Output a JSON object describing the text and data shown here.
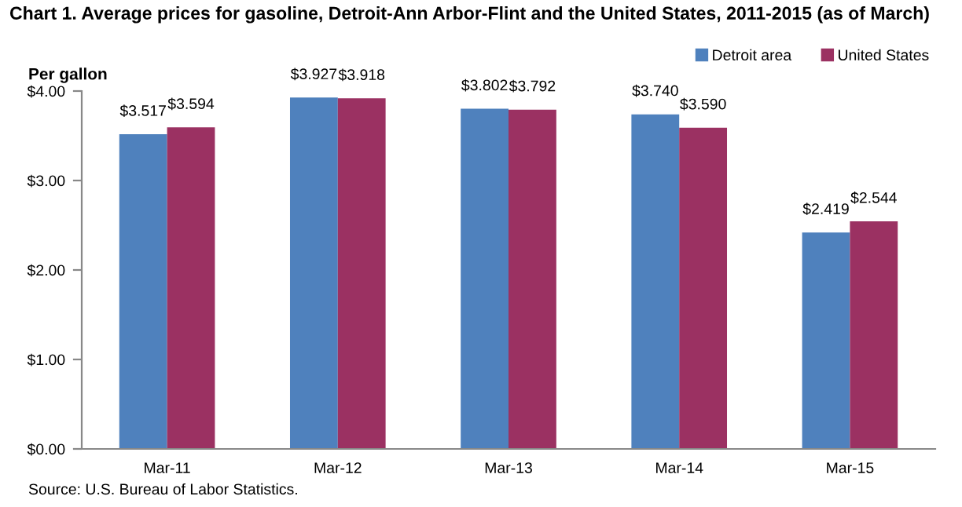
{
  "chart_data": {
    "type": "bar",
    "title": "Chart 1. Average prices for gasoline, Detroit-Ann Arbor-Flint and the United States, 2011-2015 (as of March)",
    "ylabel": "Per gallon",
    "categories": [
      "Mar-11",
      "Mar-12",
      "Mar-13",
      "Mar-14",
      "Mar-15"
    ],
    "series": [
      {
        "name": "Detroit area",
        "color": "#4f81bd",
        "values": [
          3.517,
          3.927,
          3.802,
          3.74,
          2.419
        ],
        "value_labels": [
          "$3.517",
          "$3.927",
          "$3.802",
          "$3.740",
          "$2.419"
        ]
      },
      {
        "name": "United States",
        "color": "#9b3162",
        "values": [
          3.594,
          3.918,
          3.792,
          3.59,
          2.544
        ],
        "value_labels": [
          "$3.594",
          "$3.918",
          "$3.792",
          "$3.590",
          "$2.544"
        ]
      }
    ],
    "ylim": [
      0,
      4
    ],
    "yticks": [
      {
        "value": 0,
        "label": "$0.00"
      },
      {
        "value": 1,
        "label": "$1.00"
      },
      {
        "value": 2,
        "label": "$2.00"
      },
      {
        "value": 3,
        "label": "$3.00"
      },
      {
        "value": 4,
        "label": "$4.00"
      }
    ],
    "grid": false,
    "legend": "top right",
    "annotations": [
      "Source: U.S. Bureau of Labor Statistics."
    ]
  }
}
